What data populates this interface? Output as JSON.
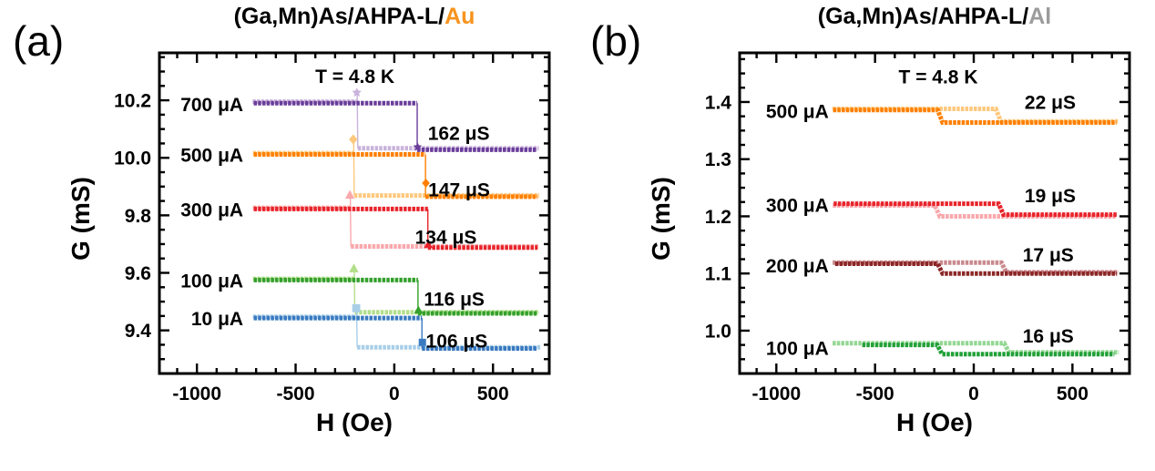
{
  "background": "#FFFFFF",
  "chart_data": [
    {
      "type": "line",
      "panel_id": "a",
      "corner_label": "(a)",
      "title_main": "(Ga,Mn)As/AHPA-L/",
      "title_metal": "Au",
      "title_metal_color": "#F7941E",
      "annotation": "T = 4.8 K",
      "annotation_pos": [
        -200,
        10.282
      ],
      "xlabel": "H (Oe)",
      "ylabel": "G (mS)",
      "xlim": [
        -1190,
        785
      ],
      "ylim": [
        9.25,
        10.365
      ],
      "xtick_values": [
        -1000,
        -500,
        0,
        500
      ],
      "xtick_labels": [
        "-1000",
        "-500",
        "0",
        "500"
      ],
      "x_minor_step": 100,
      "ytick_values": [
        9.4,
        9.6,
        9.8,
        10.0,
        10.2
      ],
      "ytick_labels": [
        "9.4",
        "9.6",
        "9.8",
        "10.0",
        "10.2"
      ],
      "y_minor_step": 0.05,
      "grid": false,
      "series": [
        {
          "label": "700 μA",
          "delta_label": "162 μS",
          "color_dark": "#6A3D9A",
          "color_light": "#C9B3DC",
          "G_high": 10.19,
          "G_low": 10.028,
          "H_switch_neg": -185,
          "H_switch_pos": 116,
          "neg_branch": "light",
          "H_dark": [
            -712,
            724
          ],
          "H_light": [
            -718,
            732
          ],
          "light_dy": 0.005,
          "label_pos": [
            -765,
            10.185
          ],
          "delta_pos": [
            170,
            10.085
          ],
          "marker": "star",
          "bump": 0.032,
          "dark_marker_frac": 0.06
        },
        {
          "label": "500 μA",
          "delta_label": "147 μS",
          "color_dark": "#FF7F00",
          "color_light": "#FDC87D",
          "G_high": 10.012,
          "G_low": 9.865,
          "H_switch_neg": -203,
          "H_switch_pos": 158,
          "neg_branch": "light",
          "H_dark": [
            -712,
            726
          ],
          "H_light": [
            -716,
            734
          ],
          "light_dy": 0.004,
          "label_pos": [
            -765,
            10.008
          ],
          "delta_pos": [
            172,
            9.888
          ],
          "marker": "diamond",
          "bump": 0.048,
          "dark_marker_frac": 0.32
        },
        {
          "label": "300 μA",
          "delta_label": "134 μS",
          "color_dark": "#E8232A",
          "color_light": "#F9A8AC",
          "G_high": 9.822,
          "G_low": 9.688,
          "H_switch_neg": -220,
          "H_switch_pos": 170,
          "neg_branch": "light",
          "H_dark": [
            -712,
            726
          ],
          "H_light": [
            -716,
            730
          ],
          "light_dy": 0.004,
          "label_pos": [
            -765,
            9.818
          ],
          "delta_pos": [
            105,
            9.723
          ],
          "marker": "triangle",
          "bump": 0.045,
          "dark_marker_frac": 0.08
        },
        {
          "label": "100 μA",
          "delta_label": "116 μS",
          "color_dark": "#33A02C",
          "color_light": "#B2DF8A",
          "G_high": 9.575,
          "G_low": 9.459,
          "H_switch_neg": -200,
          "H_switch_pos": 120,
          "neg_branch": "light",
          "H_dark": [
            -712,
            724
          ],
          "H_light": [
            -716,
            734
          ],
          "light_dy": 0.004,
          "label_pos": [
            -765,
            9.571
          ],
          "delta_pos": [
            150,
            9.508
          ],
          "marker": "triangle",
          "bump": 0.036,
          "dark_marker_frac": 0.1
        },
        {
          "label": "10 μA",
          "delta_label": "106 μS",
          "color_dark": "#3879C0",
          "color_light": "#A8CEE8",
          "G_high": 9.443,
          "G_low": 9.337,
          "H_switch_neg": -188,
          "H_switch_pos": 140,
          "neg_branch": "light",
          "H_dark": [
            -712,
            722
          ],
          "H_light": [
            -716,
            745
          ],
          "light_dy": 0.004,
          "label_pos": [
            -765,
            9.44
          ],
          "delta_pos": [
            160,
            9.362
          ],
          "marker": "square",
          "bump": 0.03,
          "dark_marker_frac": 0.2
        }
      ]
    },
    {
      "type": "line",
      "panel_id": "b",
      "corner_label": "(b)",
      "title_main": "(Ga,Mn)As/AHPA-L/",
      "title_metal": "Al",
      "title_metal_color": "#9C9C9C",
      "annotation": "T = 4.8 K",
      "annotation_pos": [
        -180,
        1.444
      ],
      "xlabel": "H (Oe)",
      "ylabel": "G (mS)",
      "xlim": [
        -1186,
        789
      ],
      "ylim": [
        0.925,
        1.486
      ],
      "xtick_values": [
        -1000,
        -500,
        0,
        500
      ],
      "xtick_labels": [
        "-1000",
        "-500",
        "0",
        "500"
      ],
      "x_minor_step": 100,
      "ytick_values": [
        1.0,
        1.1,
        1.2,
        1.3,
        1.4
      ],
      "ytick_labels": [
        "1.0",
        "1.1",
        "1.2",
        "1.3",
        "1.4"
      ],
      "y_minor_step": 0.025,
      "grid": false,
      "series": [
        {
          "label": "500 μA",
          "delta_label": "22 μS",
          "color_dark": "#FF7F00",
          "color_light": "#FDC87D",
          "G_high": 1.386,
          "G_low": 1.364,
          "H_switch_neg": -180,
          "H_switch_pos": 115,
          "neg_branch": "dark",
          "H_dark": [
            -712,
            722
          ],
          "H_light": [
            -716,
            730
          ],
          "light_dy": 0.002,
          "label_pos": [
            -735,
            1.383
          ],
          "delta_pos": [
            258,
            1.399
          ],
          "marker": "circle",
          "bump": 0,
          "dark_marker_frac": 0
        },
        {
          "label": "300 μA",
          "delta_label": "19 μS",
          "color_dark": "#E8232A",
          "color_light": "#F9A8AC",
          "G_high": 1.222,
          "G_low": 1.203,
          "H_switch_neg": -194,
          "H_switch_pos": 129,
          "neg_branch": "light",
          "H_dark": [
            -710,
            724
          ],
          "H_light": [
            -714,
            718
          ],
          "light_dy": -0.003,
          "label_pos": [
            -735,
            1.219
          ],
          "delta_pos": [
            258,
            1.236
          ],
          "marker": "triangle",
          "bump": 0,
          "dark_marker_frac": 0
        },
        {
          "label": "200 μA",
          "delta_label": "17 μS",
          "color_dark": "#8C2626",
          "color_light": "#C9898D",
          "G_high": 1.117,
          "G_low": 1.1,
          "H_switch_neg": -180,
          "H_switch_pos": 143,
          "neg_branch": "dark",
          "H_dark": [
            -702,
            726
          ],
          "H_light": [
            -715,
            732
          ],
          "light_dy": 0.002,
          "label_pos": [
            -735,
            1.113
          ],
          "delta_pos": [
            248,
            1.132
          ],
          "marker": "triangle",
          "bump": 0,
          "dark_marker_frac": 0
        },
        {
          "label": "100 μA",
          "delta_label": "16 μS",
          "color_dark": "#22A038",
          "color_light": "#93D793",
          "G_high": 0.975,
          "G_low": 0.959,
          "H_switch_neg": -182,
          "H_switch_pos": 157,
          "neg_branch": "dark",
          "H_dark": [
            -565,
            712
          ],
          "H_light": [
            -715,
            735
          ],
          "light_dy": 0.003,
          "label_pos": [
            -735,
            0.969
          ],
          "delta_pos": [
            248,
            0.99
          ],
          "marker": "circle",
          "bump": 0,
          "dark_marker_frac": 0
        }
      ]
    }
  ]
}
